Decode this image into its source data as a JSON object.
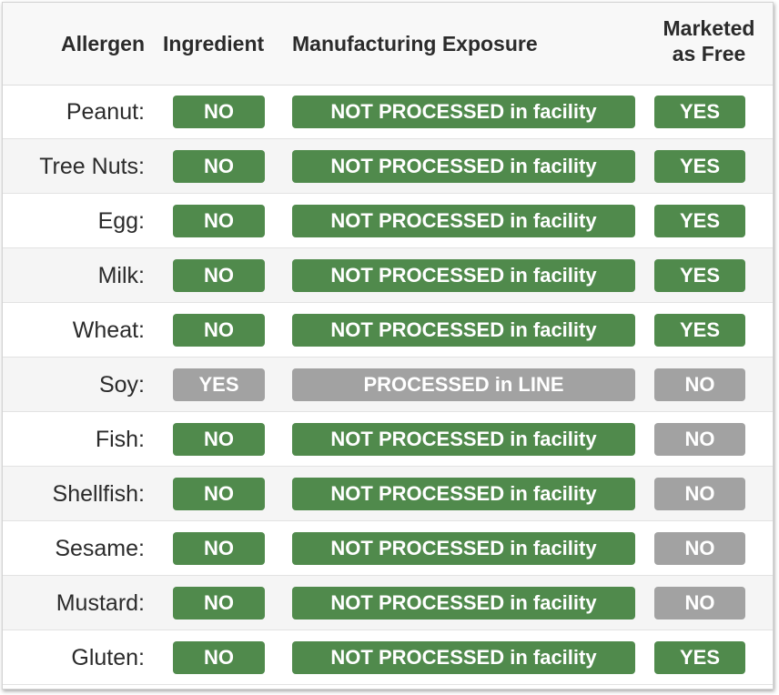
{
  "colors": {
    "green": "#508a4c",
    "gray": "#a2a2a2",
    "header_bg": "#f8f8f8",
    "alt_row_bg": "#f5f5f5"
  },
  "table": {
    "headers": {
      "allergen": "Allergen",
      "ingredient": "Ingredient",
      "exposure": "Manufacturing Exposure",
      "free_line1": "Marketed",
      "free_line2": "as Free"
    },
    "rows": [
      {
        "allergen": "Peanut:",
        "ingredient": "NO",
        "ingredient_status": "green",
        "exposure": "NOT PROCESSED in facility",
        "exposure_status": "green",
        "free": "YES",
        "free_status": "green"
      },
      {
        "allergen": "Tree Nuts:",
        "ingredient": "NO",
        "ingredient_status": "green",
        "exposure": "NOT PROCESSED in facility",
        "exposure_status": "green",
        "free": "YES",
        "free_status": "green"
      },
      {
        "allergen": "Egg:",
        "ingredient": "NO",
        "ingredient_status": "green",
        "exposure": "NOT PROCESSED in facility",
        "exposure_status": "green",
        "free": "YES",
        "free_status": "green"
      },
      {
        "allergen": "Milk:",
        "ingredient": "NO",
        "ingredient_status": "green",
        "exposure": "NOT PROCESSED in facility",
        "exposure_status": "green",
        "free": "YES",
        "free_status": "green"
      },
      {
        "allergen": "Wheat:",
        "ingredient": "NO",
        "ingredient_status": "green",
        "exposure": "NOT PROCESSED in facility",
        "exposure_status": "green",
        "free": "YES",
        "free_status": "green"
      },
      {
        "allergen": "Soy:",
        "ingredient": "YES",
        "ingredient_status": "gray",
        "exposure": "PROCESSED in LINE",
        "exposure_status": "gray",
        "free": "NO",
        "free_status": "gray"
      },
      {
        "allergen": "Fish:",
        "ingredient": "NO",
        "ingredient_status": "green",
        "exposure": "NOT PROCESSED in facility",
        "exposure_status": "green",
        "free": "NO",
        "free_status": "gray"
      },
      {
        "allergen": "Shellfish:",
        "ingredient": "NO",
        "ingredient_status": "green",
        "exposure": "NOT PROCESSED in facility",
        "exposure_status": "green",
        "free": "NO",
        "free_status": "gray"
      },
      {
        "allergen": "Sesame:",
        "ingredient": "NO",
        "ingredient_status": "green",
        "exposure": "NOT PROCESSED in facility",
        "exposure_status": "green",
        "free": "NO",
        "free_status": "gray"
      },
      {
        "allergen": "Mustard:",
        "ingredient": "NO",
        "ingredient_status": "green",
        "exposure": "NOT PROCESSED in facility",
        "exposure_status": "green",
        "free": "NO",
        "free_status": "gray"
      },
      {
        "allergen": "Gluten:",
        "ingredient": "NO",
        "ingredient_status": "green",
        "exposure": "NOT PROCESSED in facility",
        "exposure_status": "green",
        "free": "YES",
        "free_status": "green"
      }
    ]
  }
}
